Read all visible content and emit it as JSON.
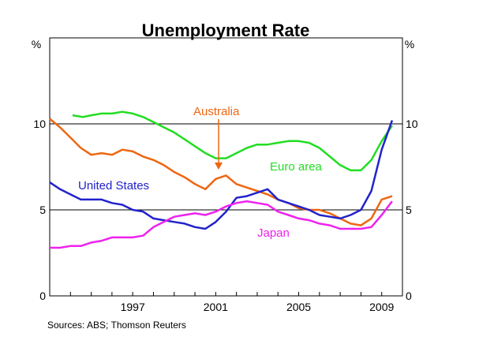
{
  "chart_data": {
    "type": "line",
    "title": "Unemployment Rate",
    "source": "Sources: ABS; Thomson Reuters",
    "unit_left": "%",
    "unit_right": "%",
    "xlim": [
      1993.0,
      2010.0
    ],
    "ylim": [
      0,
      15
    ],
    "yticks": [
      0,
      5,
      10
    ],
    "ytick_labels": [
      "0",
      "5",
      "10"
    ],
    "xticks": [
      1997,
      2001,
      2005,
      2009
    ],
    "xtick_labels": [
      "1997",
      "2001",
      "2005",
      "2009"
    ],
    "reference_lines": [
      5,
      10
    ],
    "annotation_arrow_series": "Australia",
    "series": [
      {
        "name": "Euro area",
        "color": "#22dd22",
        "x": [
          1994.1,
          1994.6,
          1995.0,
          1995.5,
          1996.0,
          1996.5,
          1997.0,
          1997.5,
          1998.0,
          1998.5,
          1999.0,
          1999.5,
          2000.0,
          2000.5,
          2001.0,
          2001.5,
          2002.0,
          2002.5,
          2003.0,
          2003.5,
          2004.0,
          2004.5,
          2005.0,
          2005.5,
          2006.0,
          2006.5,
          2007.0,
          2007.5,
          2008.0,
          2008.5,
          2009.0,
          2009.5
        ],
        "values": [
          10.5,
          10.4,
          10.5,
          10.6,
          10.6,
          10.7,
          10.6,
          10.4,
          10.1,
          9.8,
          9.5,
          9.1,
          8.7,
          8.3,
          8.0,
          8.0,
          8.3,
          8.6,
          8.8,
          8.8,
          8.9,
          9.0,
          9.0,
          8.9,
          8.6,
          8.1,
          7.6,
          7.3,
          7.3,
          7.9,
          9.0,
          9.9
        ]
      },
      {
        "name": "Australia",
        "color": "#ee6611",
        "x": [
          1993.0,
          1993.5,
          1994.0,
          1994.5,
          1995.0,
          1995.5,
          1996.0,
          1996.5,
          1997.0,
          1997.5,
          1998.0,
          1998.5,
          1999.0,
          1999.5,
          2000.0,
          2000.5,
          2001.0,
          2001.5,
          2002.0,
          2002.5,
          2003.0,
          2003.5,
          2004.0,
          2004.5,
          2005.0,
          2005.5,
          2006.0,
          2006.5,
          2007.0,
          2007.5,
          2008.0,
          2008.5,
          2009.0,
          2009.5
        ],
        "values": [
          10.3,
          9.8,
          9.2,
          8.6,
          8.2,
          8.3,
          8.2,
          8.5,
          8.4,
          8.1,
          7.9,
          7.6,
          7.2,
          6.9,
          6.5,
          6.2,
          6.8,
          7.0,
          6.5,
          6.3,
          6.1,
          5.9,
          5.6,
          5.4,
          5.1,
          5.0,
          5.0,
          4.8,
          4.5,
          4.2,
          4.1,
          4.5,
          5.6,
          5.8
        ]
      },
      {
        "name": "United States",
        "color": "#2222cc",
        "x": [
          1993.0,
          1993.5,
          1994.0,
          1994.5,
          1995.0,
          1995.5,
          1996.0,
          1996.5,
          1997.0,
          1997.5,
          1998.0,
          1998.5,
          1999.0,
          1999.5,
          2000.0,
          2000.5,
          2001.0,
          2001.5,
          2002.0,
          2002.5,
          2003.0,
          2003.5,
          2004.0,
          2004.5,
          2005.0,
          2005.5,
          2006.0,
          2006.5,
          2007.0,
          2007.5,
          2008.0,
          2008.5,
          2009.0,
          2009.5
        ],
        "values": [
          6.6,
          6.2,
          5.9,
          5.6,
          5.6,
          5.6,
          5.4,
          5.3,
          5.0,
          4.9,
          4.5,
          4.4,
          4.3,
          4.2,
          4.0,
          3.9,
          4.3,
          4.9,
          5.7,
          5.8,
          6.0,
          6.2,
          5.6,
          5.4,
          5.2,
          5.0,
          4.7,
          4.6,
          4.5,
          4.7,
          5.0,
          6.1,
          8.5,
          10.2
        ]
      },
      {
        "name": "Japan",
        "color": "#ee22ee",
        "x": [
          1993.0,
          1993.5,
          1994.0,
          1994.5,
          1995.0,
          1995.5,
          1996.0,
          1996.5,
          1997.0,
          1997.5,
          1998.0,
          1998.5,
          1999.0,
          1999.5,
          2000.0,
          2000.5,
          2001.0,
          2001.5,
          2002.0,
          2002.5,
          2003.0,
          2003.5,
          2004.0,
          2004.5,
          2005.0,
          2005.5,
          2006.0,
          2006.5,
          2007.0,
          2007.5,
          2008.0,
          2008.5,
          2009.0,
          2009.5
        ],
        "values": [
          2.8,
          2.8,
          2.9,
          2.9,
          3.1,
          3.2,
          3.4,
          3.4,
          3.4,
          3.5,
          4.0,
          4.3,
          4.6,
          4.7,
          4.8,
          4.7,
          4.9,
          5.2,
          5.4,
          5.5,
          5.4,
          5.3,
          4.9,
          4.7,
          4.5,
          4.4,
          4.2,
          4.1,
          3.9,
          3.9,
          3.9,
          4.0,
          4.7,
          5.5
        ]
      }
    ]
  }
}
